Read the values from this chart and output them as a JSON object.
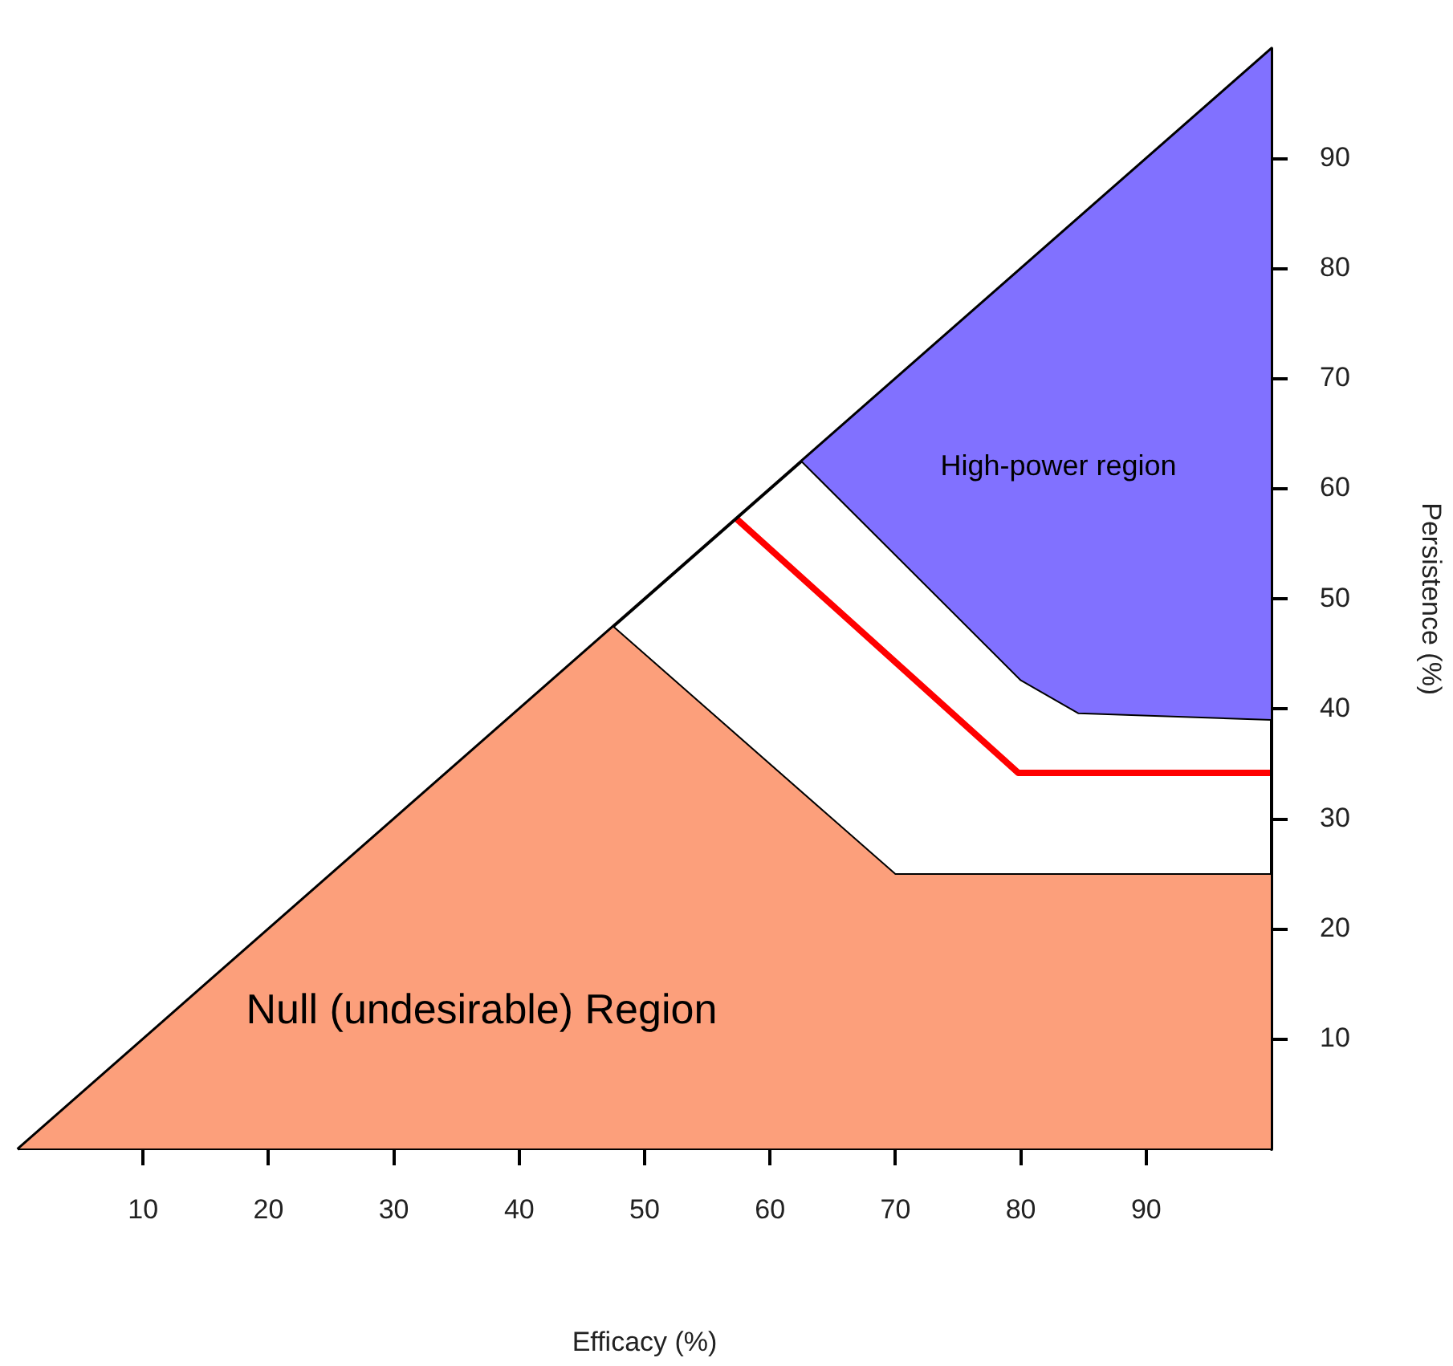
{
  "chart_data": {
    "type": "area",
    "xlabel": "Efficacy (%)",
    "ylabel": "Persistence (%)",
    "xlim": [
      0,
      100
    ],
    "ylim": [
      0,
      100
    ],
    "xticks": [
      10,
      20,
      30,
      40,
      50,
      60,
      70,
      80,
      90
    ],
    "yticks": [
      10,
      20,
      30,
      40,
      50,
      60,
      70,
      80,
      90
    ],
    "grid": false,
    "legend": false,
    "marker": "none",
    "series": [
      {
        "color": "#fc9f7b",
        "x": [
          0,
          47.5,
          70,
          100,
          100,
          0
        ],
        "values": [
          0,
          47.5,
          25,
          25,
          0,
          0
        ]
      },
      {
        "color": "#8171ff",
        "x": [
          62.5,
          80,
          84.6,
          100,
          100,
          62.5
        ],
        "values": [
          62.5,
          42.6,
          39.6,
          39,
          100,
          62.5
        ]
      },
      {
        "type": "line",
        "color": "#000000",
        "x": [
          0,
          100,
          100
        ],
        "values": [
          0,
          100,
          0
        ]
      },
      {
        "type": "line",
        "color": "#ff0000",
        "x": [
          57.3,
          79.8,
          100
        ],
        "values": [
          57.3,
          34.2,
          34.2
        ]
      }
    ],
    "annotations": [
      "Null (undesirable) Region",
      "High-power region"
    ]
  }
}
